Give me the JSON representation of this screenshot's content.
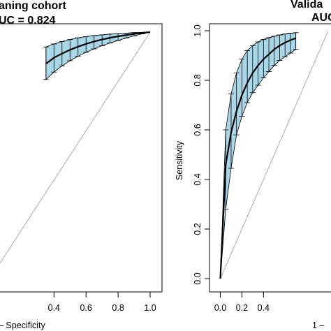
{
  "chart_data": [
    {
      "type": "line",
      "title_line1": "aning cohort",
      "title_line2": "UC =  0.824",
      "xlabel": "– Specificity",
      "ylabel": "",
      "xlim": [
        0,
        1
      ],
      "ylim": [
        0,
        1
      ],
      "xticks": [
        "0.4",
        "0.6",
        "0.8",
        "1.0"
      ],
      "yticks": [],
      "grid": false,
      "legend": "none",
      "colors": {
        "band": "#a9d7e8",
        "curve": "#000000",
        "diagonal": "#aaaaaa"
      },
      "x": [
        0.35,
        0.4,
        0.45,
        0.5,
        0.55,
        0.6,
        0.65,
        0.7,
        0.75,
        0.8,
        0.85,
        0.9,
        0.95,
        1.0
      ],
      "y": [
        0.872,
        0.896,
        0.913,
        0.928,
        0.941,
        0.952,
        0.962,
        0.97,
        0.977,
        0.983,
        0.988,
        0.993,
        0.997,
        1.0
      ],
      "upper": [
        0.94,
        0.952,
        0.962,
        0.97,
        0.977,
        0.982,
        0.986,
        0.989,
        0.992,
        0.994,
        0.996,
        0.998,
        0.999,
        1.0
      ],
      "lower": [
        0.808,
        0.838,
        0.863,
        0.884,
        0.902,
        0.918,
        0.932,
        0.945,
        0.956,
        0.966,
        0.976,
        0.985,
        0.993,
        1.0
      ]
    },
    {
      "type": "line",
      "title_line1": "Valida",
      "title_line2": "AUC",
      "xlabel": "1 – ",
      "ylabel": "Sensitivity",
      "xlim": [
        0,
        1
      ],
      "ylim": [
        0,
        1
      ],
      "xticks": [
        "0.0",
        "0.2",
        "0.4"
      ],
      "yticks": [
        "0.0",
        "0.2",
        "0.4",
        "0.6",
        "0.8",
        "1.0"
      ],
      "grid": false,
      "legend": "none",
      "colors": {
        "band": "#a9d7e8",
        "curve": "#000000",
        "diagonal": "#aaaaaa"
      },
      "x": [
        0.0,
        0.05,
        0.1,
        0.15,
        0.2,
        0.25,
        0.3,
        0.35,
        0.4,
        0.45,
        0.5,
        0.55,
        0.6,
        0.65,
        0.7
      ],
      "y": [
        0.0,
        0.46,
        0.59,
        0.675,
        0.74,
        0.79,
        0.83,
        0.86,
        0.885,
        0.905,
        0.925,
        0.94,
        0.952,
        0.962,
        0.97
      ],
      "upper": [
        0.0,
        0.6,
        0.745,
        0.83,
        0.885,
        0.92,
        0.94,
        0.955,
        0.965,
        0.972,
        0.978,
        0.983,
        0.987,
        0.99,
        0.992
      ],
      "lower": [
        0.0,
        0.28,
        0.445,
        0.58,
        0.655,
        0.71,
        0.75,
        0.78,
        0.81,
        0.835,
        0.86,
        0.88,
        0.895,
        0.91,
        0.925
      ]
    }
  ]
}
